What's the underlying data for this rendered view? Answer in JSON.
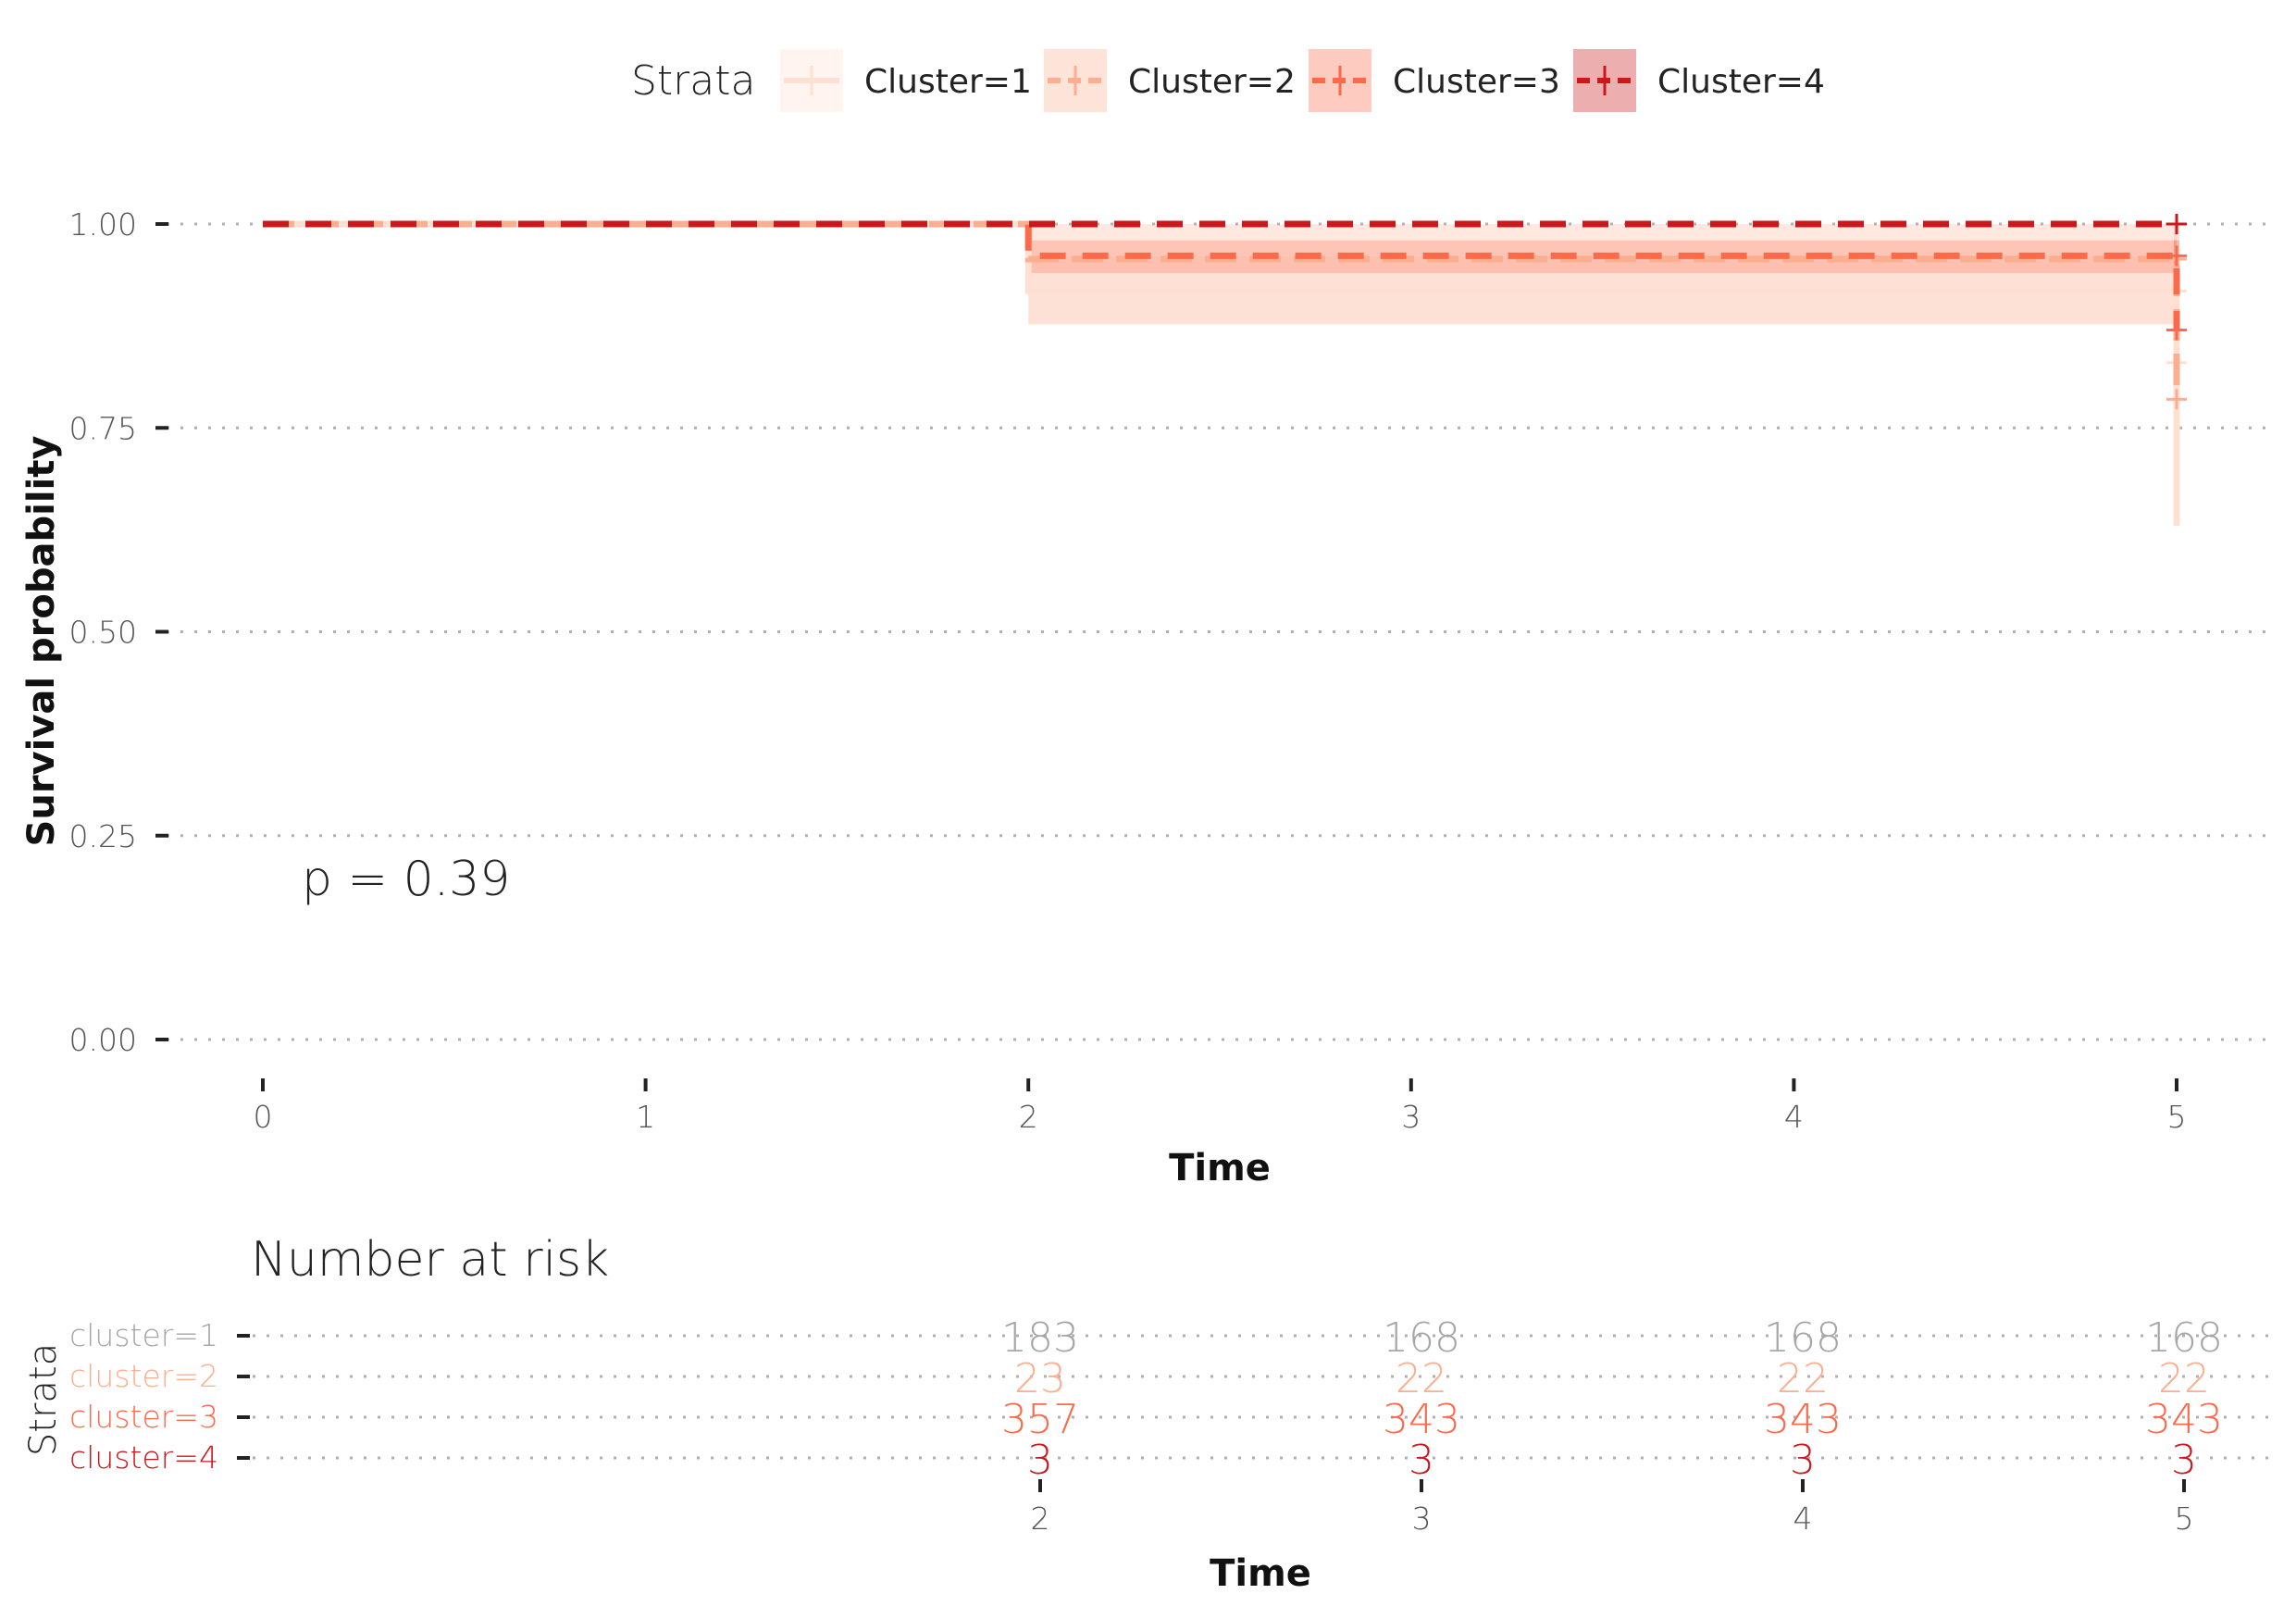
{
  "legend": {
    "title": "Strata",
    "items": [
      {
        "label": "Cluster=1",
        "color": "#fee0d2"
      },
      {
        "label": "Cluster=2",
        "color": "#fcae91"
      },
      {
        "label": "Cluster=3",
        "color": "#fb6a4a"
      },
      {
        "label": "Cluster=4",
        "color": "#cb181d"
      }
    ]
  },
  "chart_data": [
    {
      "type": "line",
      "subtype": "kaplan-meier",
      "title": "",
      "xlabel": "Time",
      "ylabel": "Survival probability",
      "xlim": [
        0,
        5
      ],
      "ylim": [
        0,
        1
      ],
      "xticks": [
        "0",
        "1",
        "2",
        "3",
        "4",
        "5"
      ],
      "yticks": [
        "0.00",
        "0.25",
        "0.50",
        "0.75",
        "1.00"
      ],
      "grid": "horizontal-dotted",
      "legend_position": "top",
      "annotation": "p = 0.39",
      "series": [
        {
          "name": "Cluster=1",
          "color": "#fee0d2",
          "line_style": "solid",
          "x": [
            0,
            2,
            5
          ],
          "y": [
            1.0,
            0.918,
            0.63
          ],
          "ci_lower": [
            1.0,
            0.877,
            0.63
          ],
          "ci_upper": [
            1.0,
            0.96,
            0.96
          ],
          "censored": [
            {
              "x": 5,
              "y": 0.918
            },
            {
              "x": 5,
              "y": 0.83
            }
          ]
        },
        {
          "name": "Cluster=2",
          "color": "#fcae91",
          "line_style": "longdash",
          "x": [
            0,
            2,
            5
          ],
          "y": [
            1.0,
            0.957,
            0.79
          ],
          "ci_lower": [
            1.0,
            0.877,
            0.79
          ],
          "ci_upper": [
            1.0,
            1.0,
            1.0
          ],
          "censored": [
            {
              "x": 5,
              "y": 0.957
            },
            {
              "x": 5,
              "y": 0.785
            }
          ]
        },
        {
          "name": "Cluster=3",
          "color": "#fb6a4a",
          "line_style": "dashed",
          "x": [
            0,
            2,
            5
          ],
          "y": [
            1.0,
            0.961,
            0.87
          ],
          "ci_lower": [
            1.0,
            0.94,
            0.87
          ],
          "ci_upper": [
            1.0,
            0.98,
            0.98
          ],
          "censored": [
            {
              "x": 5,
              "y": 0.961
            },
            {
              "x": 5,
              "y": 0.87
            }
          ]
        },
        {
          "name": "Cluster=4",
          "color": "#cb181d",
          "line_style": "dashed",
          "x": [
            0,
            5
          ],
          "y": [
            1.0,
            1.0
          ],
          "censored": [
            {
              "x": 5,
              "y": 1.0
            }
          ]
        }
      ]
    },
    {
      "type": "table",
      "title": "Number at risk",
      "xlabel": "Time",
      "ylabel": "Strata",
      "xlim": [
        0,
        5
      ],
      "xticks": [
        "2",
        "3",
        "4",
        "5"
      ],
      "strata": [
        {
          "label": "cluster=1",
          "color": "#a6a6a6",
          "values": [
            "183",
            "168",
            "168",
            "168"
          ]
        },
        {
          "label": "cluster=2",
          "color": "#fcae91",
          "values": [
            "23",
            "22",
            "22",
            "22"
          ]
        },
        {
          "label": "cluster=3",
          "color": "#fb6a4a",
          "values": [
            "357",
            "343",
            "343",
            "343"
          ]
        },
        {
          "label": "cluster=4",
          "color": "#cb181d",
          "values": [
            "3",
            "3",
            "3",
            "3"
          ]
        }
      ],
      "times": [
        2,
        3,
        4,
        5
      ]
    }
  ]
}
